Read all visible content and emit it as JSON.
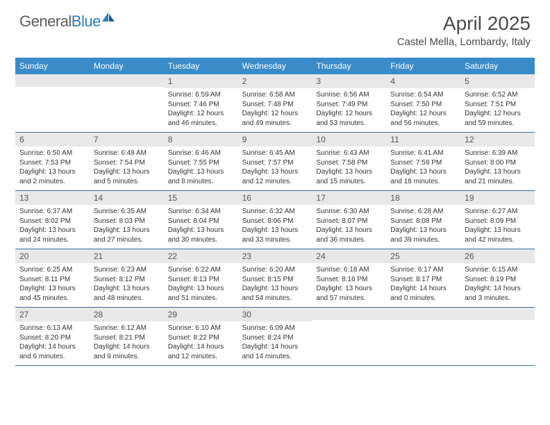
{
  "logo": {
    "text_general": "General",
    "text_blue": "Blue"
  },
  "title": "April 2025",
  "location": "Castel Mella, Lombardy, Italy",
  "colors": {
    "header_bg": "#3b8bc9",
    "daynum_bg": "#e8e8e8",
    "week_border": "#3b6a93",
    "text": "#333333",
    "logo_gray": "#5a5a5a",
    "logo_blue": "#2b7bbf"
  },
  "weekdays": [
    "Sunday",
    "Monday",
    "Tuesday",
    "Wednesday",
    "Thursday",
    "Friday",
    "Saturday"
  ],
  "weeks": [
    [
      {
        "n": "",
        "sr": "",
        "ss": "",
        "dl": ""
      },
      {
        "n": "",
        "sr": "",
        "ss": "",
        "dl": ""
      },
      {
        "n": "1",
        "sr": "Sunrise: 6:59 AM",
        "ss": "Sunset: 7:46 PM",
        "dl": "Daylight: 12 hours and 46 minutes."
      },
      {
        "n": "2",
        "sr": "Sunrise: 6:58 AM",
        "ss": "Sunset: 7:48 PM",
        "dl": "Daylight: 12 hours and 49 minutes."
      },
      {
        "n": "3",
        "sr": "Sunrise: 6:56 AM",
        "ss": "Sunset: 7:49 PM",
        "dl": "Daylight: 12 hours and 53 minutes."
      },
      {
        "n": "4",
        "sr": "Sunrise: 6:54 AM",
        "ss": "Sunset: 7:50 PM",
        "dl": "Daylight: 12 hours and 56 minutes."
      },
      {
        "n": "5",
        "sr": "Sunrise: 6:52 AM",
        "ss": "Sunset: 7:51 PM",
        "dl": "Daylight: 12 hours and 59 minutes."
      }
    ],
    [
      {
        "n": "6",
        "sr": "Sunrise: 6:50 AM",
        "ss": "Sunset: 7:53 PM",
        "dl": "Daylight: 13 hours and 2 minutes."
      },
      {
        "n": "7",
        "sr": "Sunrise: 6:48 AM",
        "ss": "Sunset: 7:54 PM",
        "dl": "Daylight: 13 hours and 5 minutes."
      },
      {
        "n": "8",
        "sr": "Sunrise: 6:46 AM",
        "ss": "Sunset: 7:55 PM",
        "dl": "Daylight: 13 hours and 8 minutes."
      },
      {
        "n": "9",
        "sr": "Sunrise: 6:45 AM",
        "ss": "Sunset: 7:57 PM",
        "dl": "Daylight: 13 hours and 12 minutes."
      },
      {
        "n": "10",
        "sr": "Sunrise: 6:43 AM",
        "ss": "Sunset: 7:58 PM",
        "dl": "Daylight: 13 hours and 15 minutes."
      },
      {
        "n": "11",
        "sr": "Sunrise: 6:41 AM",
        "ss": "Sunset: 7:59 PM",
        "dl": "Daylight: 13 hours and 18 minutes."
      },
      {
        "n": "12",
        "sr": "Sunrise: 6:39 AM",
        "ss": "Sunset: 8:00 PM",
        "dl": "Daylight: 13 hours and 21 minutes."
      }
    ],
    [
      {
        "n": "13",
        "sr": "Sunrise: 6:37 AM",
        "ss": "Sunset: 8:02 PM",
        "dl": "Daylight: 13 hours and 24 minutes."
      },
      {
        "n": "14",
        "sr": "Sunrise: 6:35 AM",
        "ss": "Sunset: 8:03 PM",
        "dl": "Daylight: 13 hours and 27 minutes."
      },
      {
        "n": "15",
        "sr": "Sunrise: 6:34 AM",
        "ss": "Sunset: 8:04 PM",
        "dl": "Daylight: 13 hours and 30 minutes."
      },
      {
        "n": "16",
        "sr": "Sunrise: 6:32 AM",
        "ss": "Sunset: 8:06 PM",
        "dl": "Daylight: 13 hours and 33 minutes."
      },
      {
        "n": "17",
        "sr": "Sunrise: 6:30 AM",
        "ss": "Sunset: 8:07 PM",
        "dl": "Daylight: 13 hours and 36 minutes."
      },
      {
        "n": "18",
        "sr": "Sunrise: 6:28 AM",
        "ss": "Sunset: 8:08 PM",
        "dl": "Daylight: 13 hours and 39 minutes."
      },
      {
        "n": "19",
        "sr": "Sunrise: 6:27 AM",
        "ss": "Sunset: 8:09 PM",
        "dl": "Daylight: 13 hours and 42 minutes."
      }
    ],
    [
      {
        "n": "20",
        "sr": "Sunrise: 6:25 AM",
        "ss": "Sunset: 8:11 PM",
        "dl": "Daylight: 13 hours and 45 minutes."
      },
      {
        "n": "21",
        "sr": "Sunrise: 6:23 AM",
        "ss": "Sunset: 8:12 PM",
        "dl": "Daylight: 13 hours and 48 minutes."
      },
      {
        "n": "22",
        "sr": "Sunrise: 6:22 AM",
        "ss": "Sunset: 8:13 PM",
        "dl": "Daylight: 13 hours and 51 minutes."
      },
      {
        "n": "23",
        "sr": "Sunrise: 6:20 AM",
        "ss": "Sunset: 8:15 PM",
        "dl": "Daylight: 13 hours and 54 minutes."
      },
      {
        "n": "24",
        "sr": "Sunrise: 6:18 AM",
        "ss": "Sunset: 8:16 PM",
        "dl": "Daylight: 13 hours and 57 minutes."
      },
      {
        "n": "25",
        "sr": "Sunrise: 6:17 AM",
        "ss": "Sunset: 8:17 PM",
        "dl": "Daylight: 14 hours and 0 minutes."
      },
      {
        "n": "26",
        "sr": "Sunrise: 6:15 AM",
        "ss": "Sunset: 8:19 PM",
        "dl": "Daylight: 14 hours and 3 minutes."
      }
    ],
    [
      {
        "n": "27",
        "sr": "Sunrise: 6:13 AM",
        "ss": "Sunset: 8:20 PM",
        "dl": "Daylight: 14 hours and 6 minutes."
      },
      {
        "n": "28",
        "sr": "Sunrise: 6:12 AM",
        "ss": "Sunset: 8:21 PM",
        "dl": "Daylight: 14 hours and 9 minutes."
      },
      {
        "n": "29",
        "sr": "Sunrise: 6:10 AM",
        "ss": "Sunset: 8:22 PM",
        "dl": "Daylight: 14 hours and 12 minutes."
      },
      {
        "n": "30",
        "sr": "Sunrise: 6:09 AM",
        "ss": "Sunset: 8:24 PM",
        "dl": "Daylight: 14 hours and 14 minutes."
      },
      {
        "n": "",
        "sr": "",
        "ss": "",
        "dl": ""
      },
      {
        "n": "",
        "sr": "",
        "ss": "",
        "dl": ""
      },
      {
        "n": "",
        "sr": "",
        "ss": "",
        "dl": ""
      }
    ]
  ]
}
